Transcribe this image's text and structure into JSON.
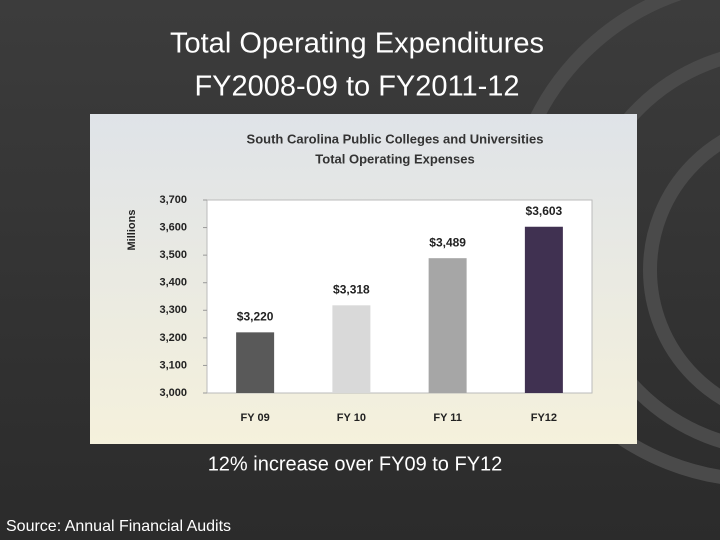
{
  "slide": {
    "title": [
      "Total Operating Expenditures",
      "FY2008-09 to FY2011-12"
    ],
    "note": "12% increase over FY09 to FY12",
    "source": "Source: Annual Financial Audits"
  },
  "chart_data": {
    "type": "bar",
    "title": "South Carolina Public Colleges and Universities",
    "subtitle": "Total Operating Expenses",
    "y_label": "Millions",
    "categories": [
      "FY 09",
      "FY 10",
      "FY 11",
      "FY12"
    ],
    "values": [
      3220,
      3318,
      3489,
      3603
    ],
    "value_labels": [
      "$3,220",
      "$3,318",
      "$3,489",
      "$3,603"
    ],
    "colors": [
      "#595959",
      "#d9d9d9",
      "#a6a6a6",
      "#403151"
    ],
    "ylim": [
      3000,
      3700
    ],
    "yticks": [
      {
        "value": 3000,
        "label": "3,000"
      },
      {
        "value": 3100,
        "label": "3,100"
      },
      {
        "value": 3200,
        "label": "3,200"
      },
      {
        "value": 3300,
        "label": "3,300"
      },
      {
        "value": 3400,
        "label": "3,400"
      },
      {
        "value": 3500,
        "label": "3,500"
      },
      {
        "value": 3600,
        "label": "3,600"
      },
      {
        "value": 3700,
        "label": "3,700"
      }
    ],
    "grid": false
  }
}
